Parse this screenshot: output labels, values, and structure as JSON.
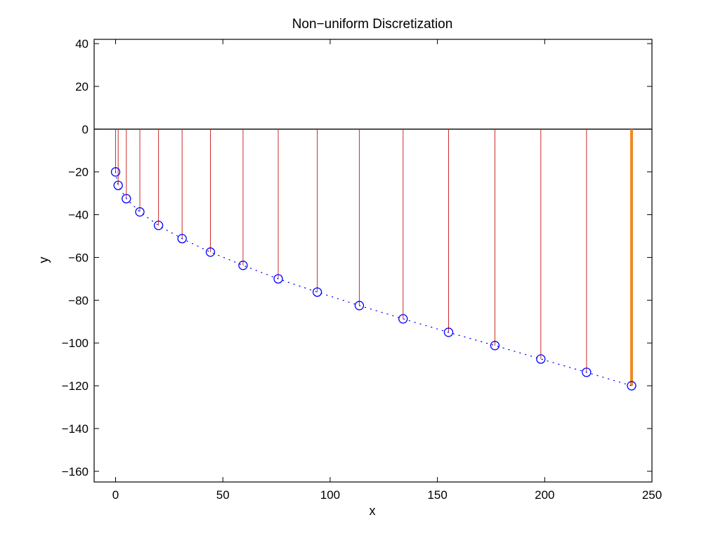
{
  "chart_data": {
    "type": "scatter",
    "title": "Non−uniform Discretization",
    "xlabel": "x",
    "ylabel": "y",
    "xlim": [
      -10,
      250
    ],
    "ylim": [
      -165,
      42
    ],
    "xticks": [
      0,
      50,
      100,
      150,
      200,
      250
    ],
    "yticks": [
      40,
      20,
      0,
      -20,
      -40,
      -60,
      -80,
      -100,
      -120,
      -140,
      -160
    ],
    "xtick_labels": [
      "0",
      "50",
      "100",
      "150",
      "200",
      "250"
    ],
    "ytick_labels": [
      "40",
      "20",
      "0",
      "−20",
      "−40",
      "−60",
      "−80",
      "−100",
      "−120",
      "−140",
      "−160"
    ],
    "grid": false,
    "legend": null,
    "zero_line": 0,
    "series": [
      {
        "style": "circles-dotted",
        "color": "#0000ff",
        "x": [
          0,
          1.2,
          5,
          11.3,
          20,
          31,
          44.2,
          59.4,
          75.8,
          94,
          113.6,
          134,
          155.2,
          176.8,
          198.2,
          219.5,
          240.5
        ],
        "y": [
          -20,
          -26.3,
          -32.5,
          -38.7,
          -45,
          -51.2,
          -57.5,
          -63.7,
          -70,
          -76.2,
          -82.5,
          -88.7,
          -95,
          -101.2,
          -107.5,
          -113.7,
          -120
        ]
      }
    ],
    "stems": {
      "color": "#cc2a2a",
      "from_y": 0,
      "x": [
        0,
        1.2,
        5,
        11.3,
        20,
        31,
        44.2,
        59.4,
        75.8,
        94,
        113.6,
        134,
        155.2,
        176.8,
        198.2,
        219.5
      ],
      "to_y": [
        -20,
        -26.3,
        -32.5,
        -38.7,
        -45,
        -51.2,
        -57.5,
        -63.7,
        -70,
        -76.2,
        -82.5,
        -88.7,
        -95,
        -101.2,
        -107.5,
        -113.7
      ]
    },
    "highlight_stem": {
      "color": "#f08a24",
      "x": 240.5,
      "from_y": 0,
      "to_y": -120
    }
  }
}
